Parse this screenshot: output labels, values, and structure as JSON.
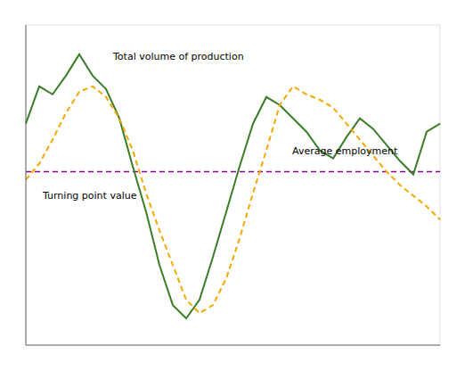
{
  "chart_data": {
    "type": "line",
    "categories": [
      null,
      null,
      null,
      null,
      null,
      null,
      null,
      null,
      null,
      null,
      null,
      null,
      null,
      null,
      null,
      null,
      null,
      null,
      null,
      null,
      null,
      null,
      null,
      null,
      null,
      null,
      null,
      null,
      null,
      null,
      null,
      null
    ],
    "series": [
      {
        "color": "#3a7d27",
        "line_style": "solid",
        "values": [
          1.8,
          3.2,
          2.9,
          3.6,
          4.4,
          3.6,
          3.1,
          2.0,
          0.2,
          -1.5,
          -3.5,
          -5.0,
          -5.5,
          -4.8,
          -3.2,
          -1.5,
          0.2,
          1.8,
          2.8,
          2.5,
          2.0,
          1.5,
          0.8,
          0.5,
          1.3,
          2.0,
          1.6,
          1.0,
          0.4,
          -0.1,
          1.5,
          1.8
        ]
      },
      {
        "color": "#f5a800",
        "line_style": "dashed",
        "values": [
          -0.3,
          0.3,
          1.2,
          2.2,
          3.0,
          3.2,
          2.8,
          2.0,
          0.8,
          -0.8,
          -2.2,
          -3.5,
          -4.8,
          -5.3,
          -5.0,
          -4.0,
          -2.5,
          -0.8,
          0.8,
          2.5,
          3.2,
          2.9,
          2.7,
          2.4,
          1.8,
          1.2,
          0.6,
          0.0,
          -0.5,
          -0.9,
          -1.3,
          -1.8
        ]
      }
    ],
    "hlines": [
      {
        "value": 0.0,
        "color": "#8B008B",
        "line_style": "dashed"
      }
    ],
    "annotations": [
      "Total volume of production",
      "Average employment",
      "Turning point value"
    ],
    "ylim": [
      -6.5,
      5.5
    ],
    "yticks": [
      -6,
      -4,
      -2,
      0,
      2,
      4
    ],
    "grid": true,
    "tick_labels": false
  }
}
